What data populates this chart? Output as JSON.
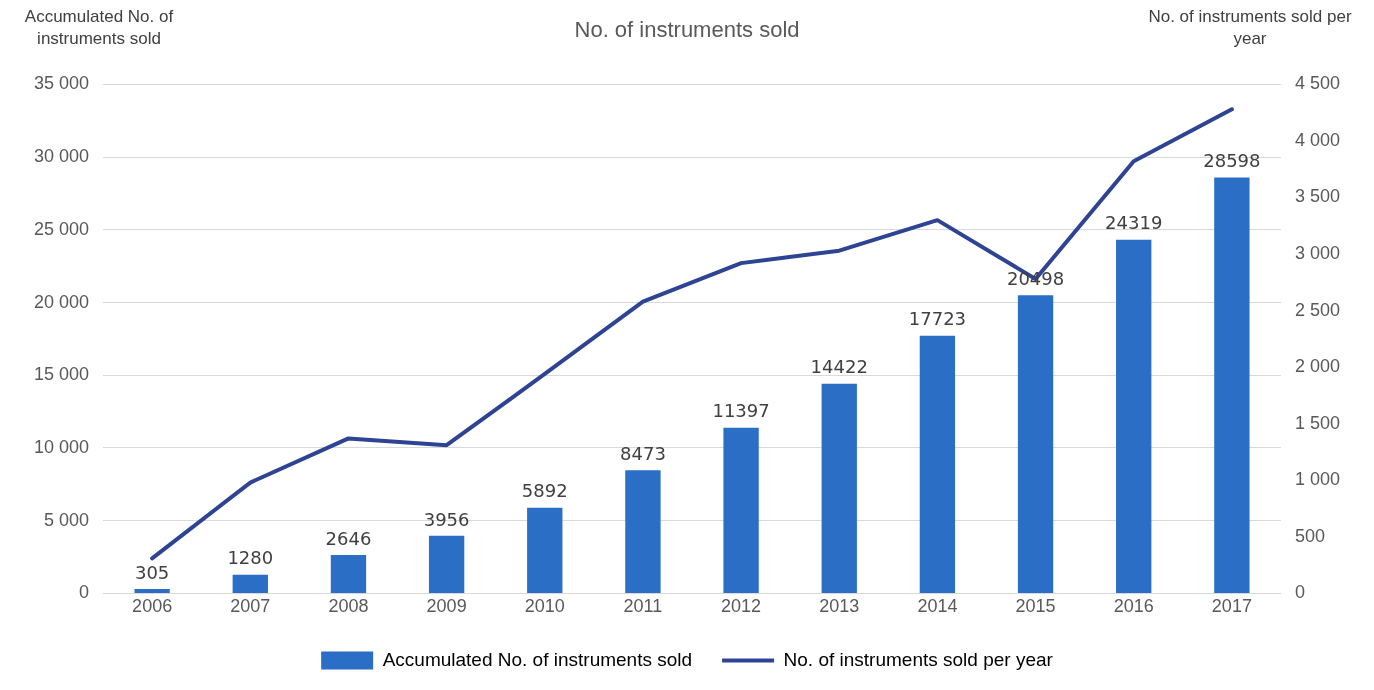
{
  "chart_data": {
    "type": "bar",
    "title": "No. of instruments sold",
    "ylabel": "Accumulated No. of instruments sold",
    "y2label": "No. of instruments sold per year",
    "categories": [
      "2006",
      "2007",
      "2008",
      "2009",
      "2010",
      "2011",
      "2012",
      "2013",
      "2014",
      "2015",
      "2016",
      "2017"
    ],
    "series": [
      {
        "name": "Accumulated No. of instruments sold",
        "color": "#2a6ec6",
        "values": [
          305,
          1280,
          2646,
          3956,
          5892,
          8473,
          11397,
          14422,
          17723,
          20498,
          24319,
          28598
        ],
        "value_labels": [
          "305",
          "1280",
          "2646",
          "3956",
          "5892",
          "8473",
          "11397",
          "14422",
          "17723",
          "20498",
          "24319",
          "28598"
        ]
      },
      {
        "name": "No. of instruments sold per year",
        "type": "line",
        "axis": "y2",
        "color": "#2e4393",
        "values": [
          310,
          980,
          1370,
          1310,
          1940,
          2580,
          2920,
          3030,
          3300,
          2780,
          3820,
          4280
        ]
      }
    ],
    "ylim": [
      0,
      35000
    ],
    "yticks": [
      {
        "value": 0,
        "label": "0"
      },
      {
        "value": 5000,
        "label": "5 000"
      },
      {
        "value": 10000,
        "label": "10 000"
      },
      {
        "value": 15000,
        "label": "15 000"
      },
      {
        "value": 20000,
        "label": "20 000"
      },
      {
        "value": 25000,
        "label": "25 000"
      },
      {
        "value": 30000,
        "label": "30 000"
      },
      {
        "value": 35000,
        "label": "35 000"
      }
    ],
    "y2lim": [
      0,
      4500
    ],
    "y2ticks": [
      {
        "value": 0,
        "label": "0"
      },
      {
        "value": 500,
        "label": "500"
      },
      {
        "value": 1000,
        "label": "1 000"
      },
      {
        "value": 1500,
        "label": "1 500"
      },
      {
        "value": 2000,
        "label": "2 000"
      },
      {
        "value": 2500,
        "label": "2 500"
      },
      {
        "value": 3000,
        "label": "3 000"
      },
      {
        "value": 3500,
        "label": "3 500"
      },
      {
        "value": 4000,
        "label": "4 000"
      },
      {
        "value": 4500,
        "label": "4 500"
      }
    ],
    "grid": "y",
    "legend": "bottom",
    "marker": "none",
    "line_style": "solid"
  }
}
